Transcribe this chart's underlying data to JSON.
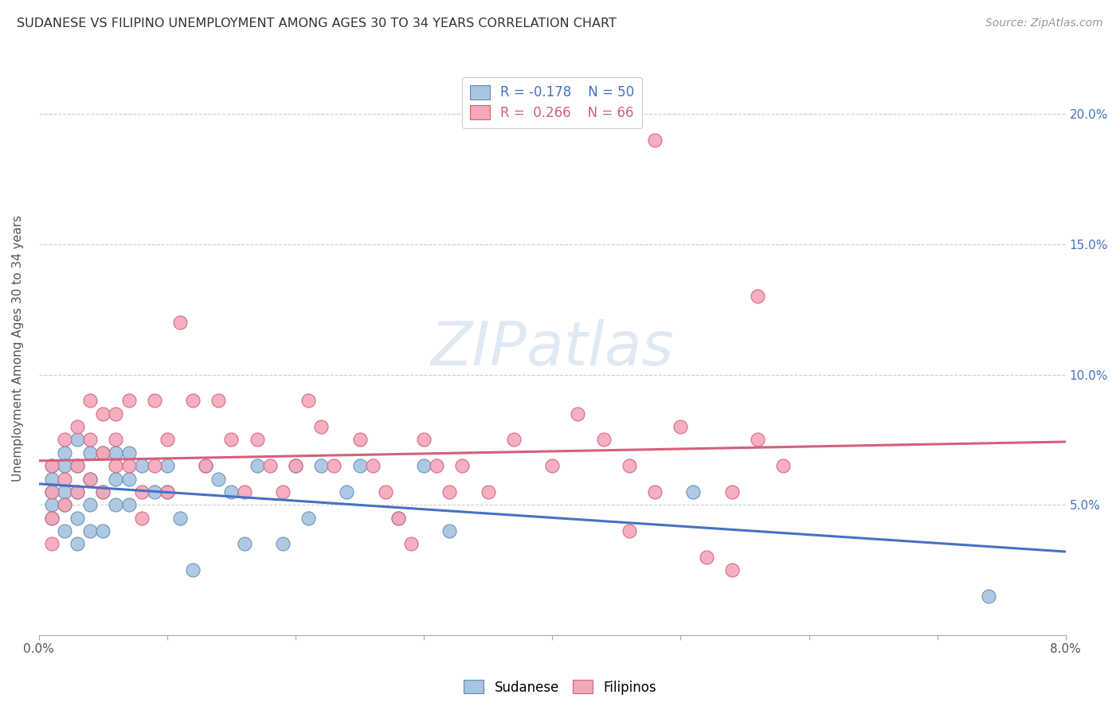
{
  "title": "SUDANESE VS FILIPINO UNEMPLOYMENT AMONG AGES 30 TO 34 YEARS CORRELATION CHART",
  "source": "Source: ZipAtlas.com",
  "ylabel": "Unemployment Among Ages 30 to 34 years",
  "xlim": [
    0.0,
    0.08
  ],
  "ylim": [
    0.0,
    0.22
  ],
  "xticks": [
    0.0,
    0.01,
    0.02,
    0.03,
    0.04,
    0.05,
    0.06,
    0.07,
    0.08
  ],
  "xticklabels": [
    "0.0%",
    "",
    "",
    "",
    "",
    "",
    "",
    "",
    "8.0%"
  ],
  "ytick_positions": [
    0.0,
    0.05,
    0.1,
    0.15,
    0.2
  ],
  "yticklabels_right": [
    "",
    "5.0%",
    "10.0%",
    "15.0%",
    "20.0%"
  ],
  "sudanese_color": "#a8c4e0",
  "filipino_color": "#f4a7b9",
  "sudanese_edge_color": "#5b8db8",
  "filipino_edge_color": "#d4607a",
  "sudanese_line_color": "#4472c4",
  "filipino_line_color": "#d4607a",
  "watermark": "ZIPatlas",
  "sudanese_x": [
    0.001,
    0.001,
    0.001,
    0.001,
    0.001,
    0.002,
    0.002,
    0.002,
    0.002,
    0.002,
    0.003,
    0.003,
    0.003,
    0.003,
    0.003,
    0.004,
    0.004,
    0.004,
    0.004,
    0.005,
    0.005,
    0.005,
    0.006,
    0.006,
    0.006,
    0.007,
    0.007,
    0.007,
    0.008,
    0.009,
    0.01,
    0.01,
    0.011,
    0.012,
    0.013,
    0.014,
    0.015,
    0.016,
    0.017,
    0.019,
    0.02,
    0.021,
    0.022,
    0.024,
    0.025,
    0.028,
    0.03,
    0.032,
    0.051,
    0.074
  ],
  "sudanese_y": [
    0.065,
    0.06,
    0.055,
    0.05,
    0.045,
    0.07,
    0.065,
    0.055,
    0.05,
    0.04,
    0.075,
    0.065,
    0.055,
    0.045,
    0.035,
    0.07,
    0.06,
    0.05,
    0.04,
    0.07,
    0.055,
    0.04,
    0.07,
    0.06,
    0.05,
    0.07,
    0.06,
    0.05,
    0.065,
    0.055,
    0.065,
    0.055,
    0.045,
    0.025,
    0.065,
    0.06,
    0.055,
    0.035,
    0.065,
    0.035,
    0.065,
    0.045,
    0.065,
    0.055,
    0.065,
    0.045,
    0.065,
    0.04,
    0.055,
    0.015
  ],
  "filipino_x": [
    0.001,
    0.001,
    0.001,
    0.001,
    0.002,
    0.002,
    0.002,
    0.003,
    0.003,
    0.003,
    0.004,
    0.004,
    0.004,
    0.005,
    0.005,
    0.005,
    0.006,
    0.006,
    0.006,
    0.007,
    0.007,
    0.008,
    0.008,
    0.009,
    0.009,
    0.01,
    0.01,
    0.011,
    0.012,
    0.013,
    0.014,
    0.015,
    0.016,
    0.017,
    0.018,
    0.019,
    0.02,
    0.021,
    0.022,
    0.023,
    0.025,
    0.026,
    0.027,
    0.028,
    0.029,
    0.03,
    0.031,
    0.032,
    0.033,
    0.035,
    0.037,
    0.04,
    0.042,
    0.044,
    0.046,
    0.048,
    0.05,
    0.052,
    0.054,
    0.056,
    0.058,
    0.046,
    0.056,
    0.054,
    0.048
  ],
  "filipino_y": [
    0.065,
    0.055,
    0.045,
    0.035,
    0.075,
    0.06,
    0.05,
    0.08,
    0.065,
    0.055,
    0.09,
    0.075,
    0.06,
    0.085,
    0.07,
    0.055,
    0.085,
    0.075,
    0.065,
    0.09,
    0.065,
    0.055,
    0.045,
    0.09,
    0.065,
    0.075,
    0.055,
    0.12,
    0.09,
    0.065,
    0.09,
    0.075,
    0.055,
    0.075,
    0.065,
    0.055,
    0.065,
    0.09,
    0.08,
    0.065,
    0.075,
    0.065,
    0.055,
    0.045,
    0.035,
    0.075,
    0.065,
    0.055,
    0.065,
    0.055,
    0.075,
    0.065,
    0.085,
    0.075,
    0.065,
    0.055,
    0.08,
    0.03,
    0.055,
    0.075,
    0.065,
    0.04,
    0.13,
    0.025,
    0.19
  ]
}
